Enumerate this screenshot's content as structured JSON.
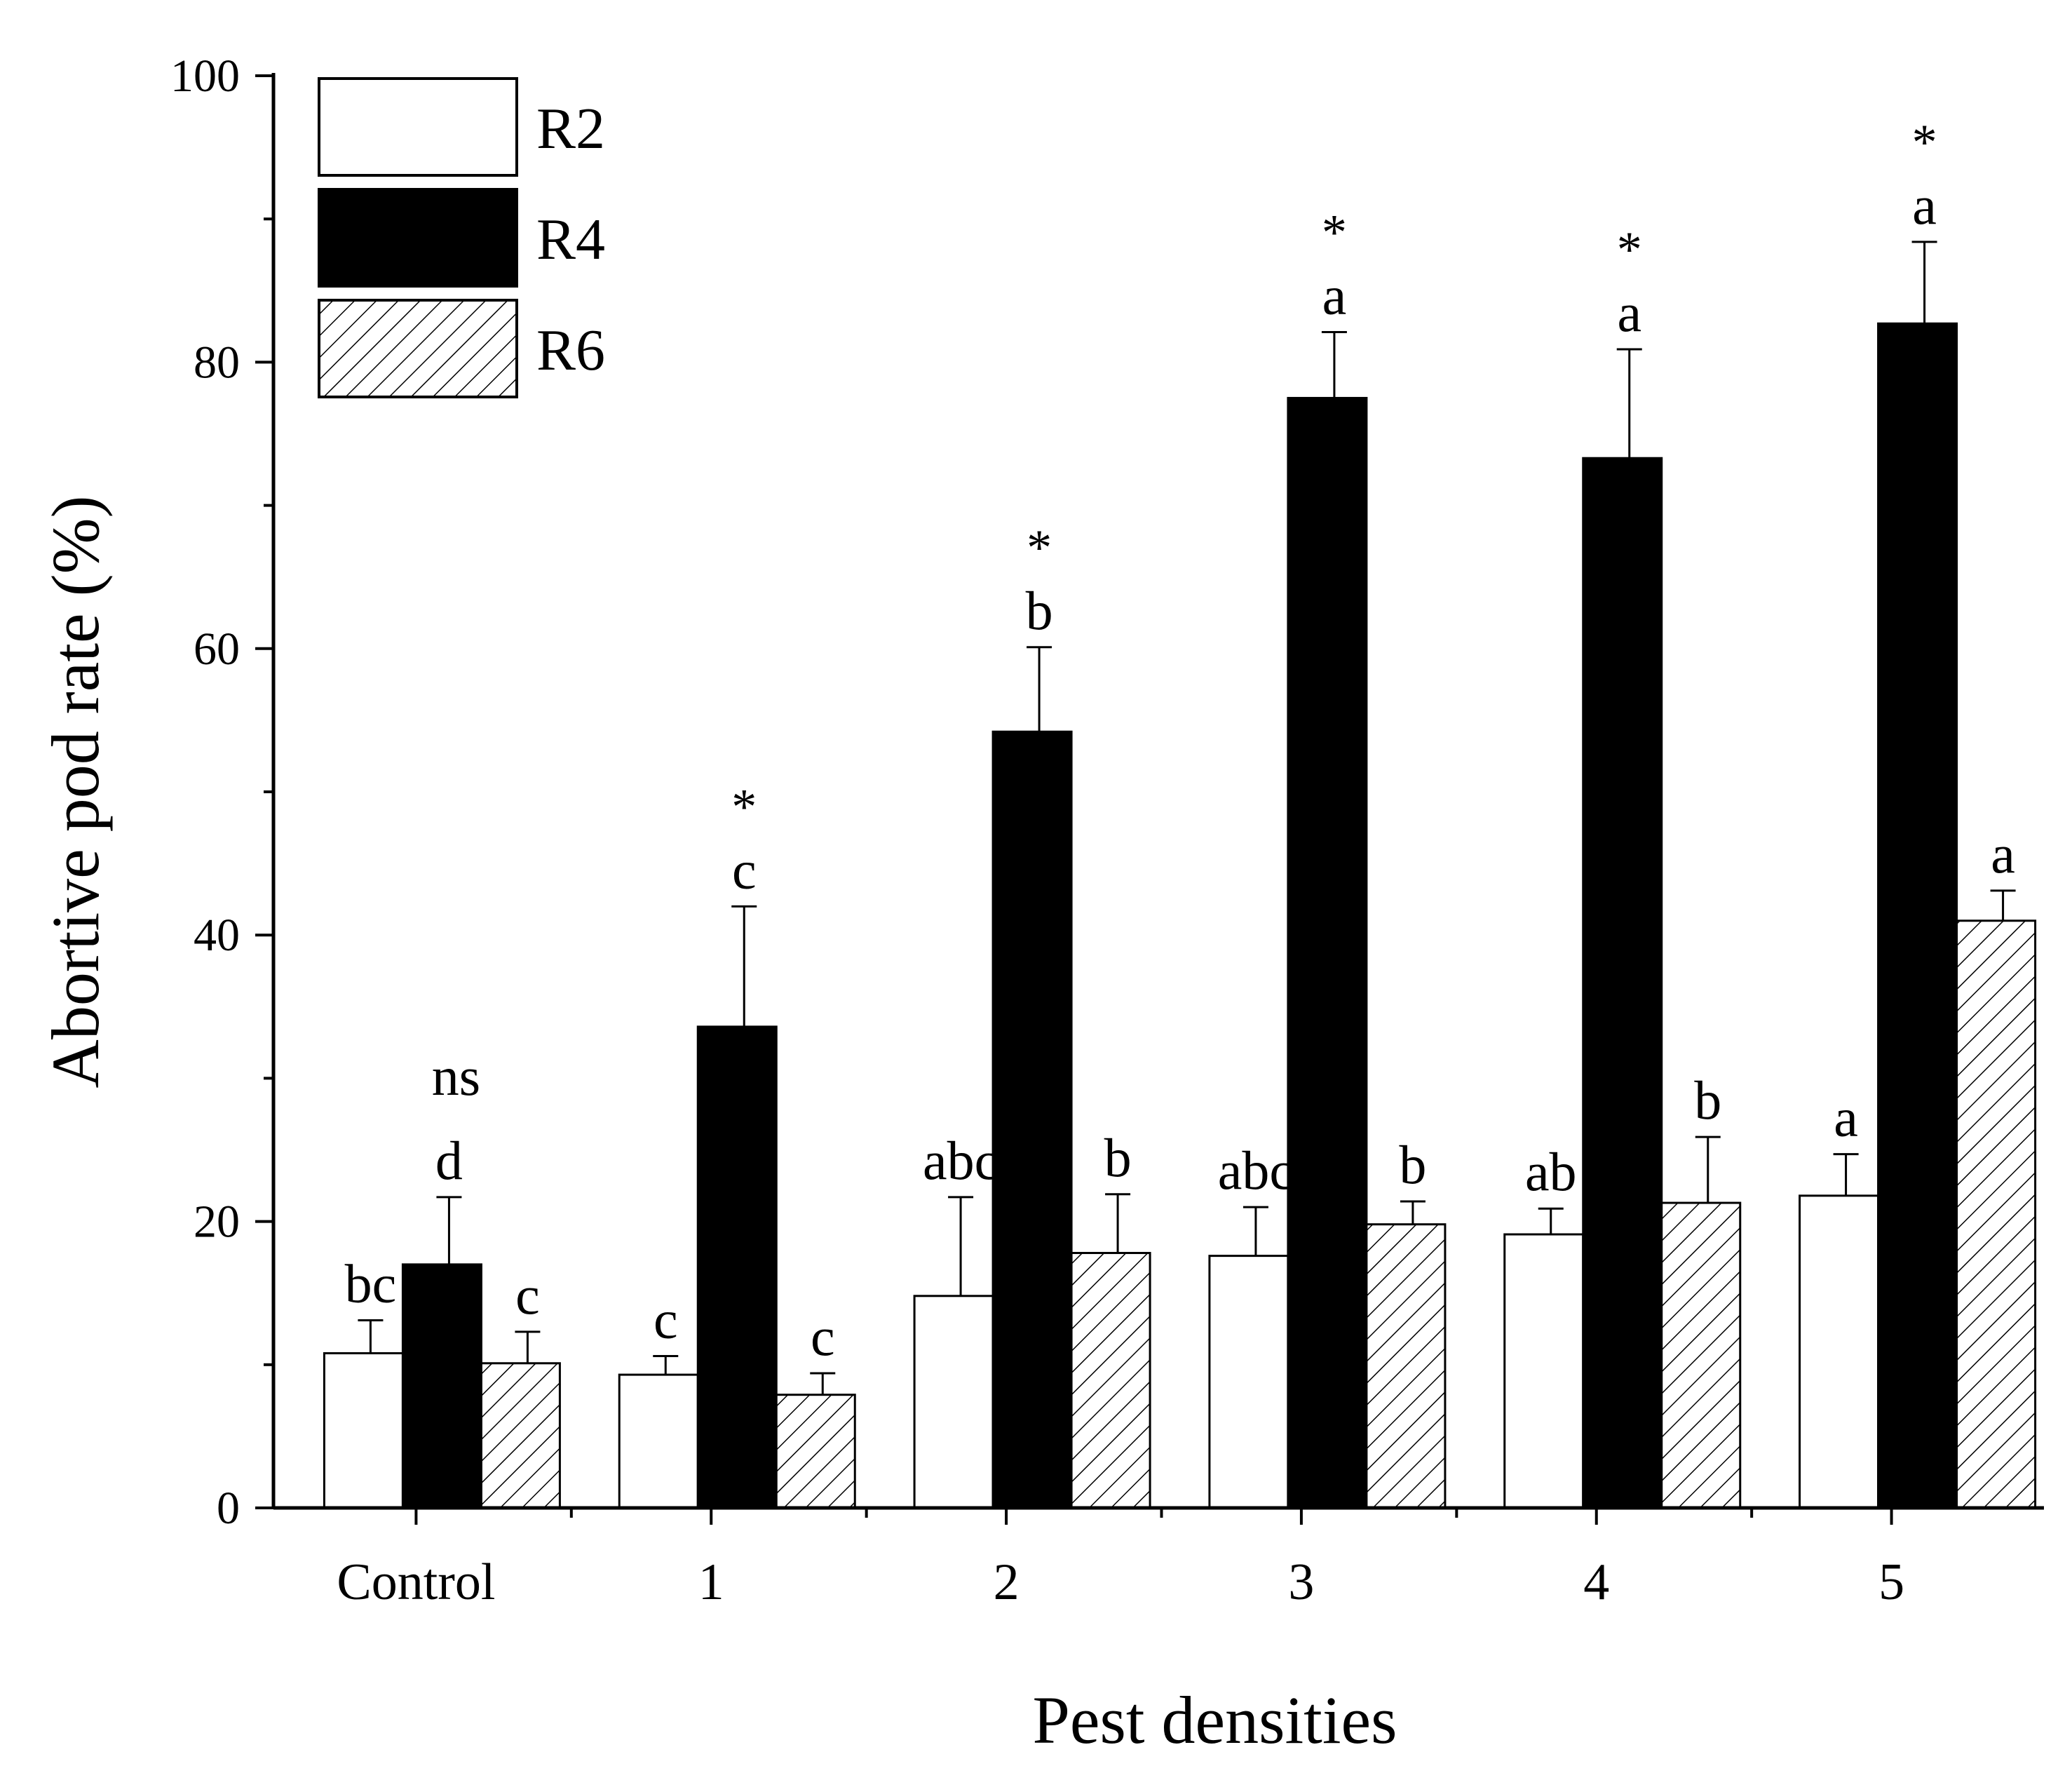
{
  "chart_data": {
    "type": "bar",
    "title": "",
    "xlabel": "Pest densities",
    "ylabel": "Abortive pod rate (%)",
    "ylim": [
      0,
      100
    ],
    "yticks": [
      0,
      20,
      40,
      60,
      80,
      100
    ],
    "grid": false,
    "legend_position": "top-left",
    "categories": [
      "Control",
      "1",
      "2",
      "3",
      "4",
      "5"
    ],
    "series": [
      {
        "name": "R2",
        "pattern": "white",
        "values": [
          10.8,
          9.3,
          14.8,
          17.6,
          19.1,
          21.8
        ],
        "errors": [
          2.3,
          1.3,
          6.9,
          3.4,
          1.8,
          2.9
        ],
        "letters": [
          "bc",
          "c",
          "abc",
          "abc",
          "ab",
          "a"
        ]
      },
      {
        "name": "R4",
        "pattern": "black",
        "values": [
          17.0,
          33.6,
          54.2,
          77.5,
          73.3,
          82.7
        ],
        "errors": [
          4.7,
          8.4,
          5.9,
          4.6,
          7.6,
          5.7
        ],
        "letters": [
          "d",
          "c",
          "b",
          "a",
          "a",
          "a"
        ],
        "significance": [
          "ns",
          "*",
          "*",
          "*",
          "*",
          "*"
        ]
      },
      {
        "name": "R6",
        "pattern": "hatched",
        "values": [
          10.1,
          7.9,
          17.8,
          19.8,
          21.3,
          41.0
        ],
        "errors": [
          2.2,
          1.5,
          4.1,
          1.6,
          4.6,
          2.1
        ],
        "letters": [
          "c",
          "c",
          "b",
          "b",
          "b",
          "a"
        ]
      }
    ]
  }
}
